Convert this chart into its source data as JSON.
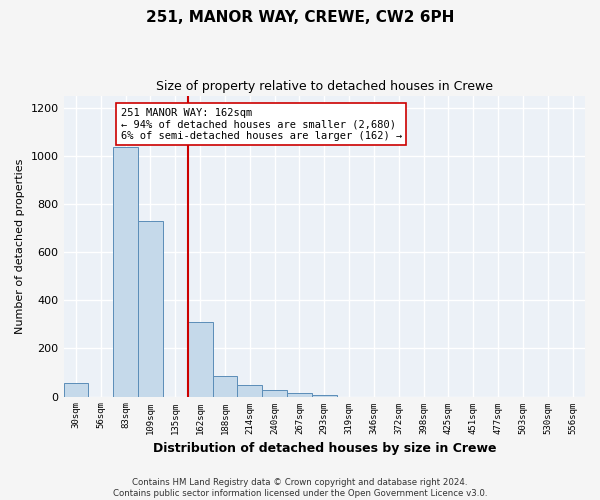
{
  "title": "251, MANOR WAY, CREWE, CW2 6PH",
  "subtitle": "Size of property relative to detached houses in Crewe",
  "xlabel": "Distribution of detached houses by size in Crewe",
  "ylabel": "Number of detached properties",
  "bar_labels": [
    "30sqm",
    "56sqm",
    "83sqm",
    "109sqm",
    "135sqm",
    "162sqm",
    "188sqm",
    "214sqm",
    "240sqm",
    "267sqm",
    "293sqm",
    "319sqm",
    "346sqm",
    "372sqm",
    "398sqm",
    "425sqm",
    "451sqm",
    "477sqm",
    "503sqm",
    "530sqm",
    "556sqm"
  ],
  "bar_values": [
    57,
    0,
    1035,
    730,
    0,
    310,
    85,
    50,
    28,
    14,
    8,
    0,
    0,
    0,
    0,
    0,
    0,
    0,
    0,
    0,
    0
  ],
  "bar_color": "#c5d9ea",
  "bar_edge_color": "#5b8db8",
  "vline_color": "#cc0000",
  "vline_x_idx": 4.5,
  "annotation_text": "251 MANOR WAY: 162sqm\n← 94% of detached houses are smaller (2,680)\n6% of semi-detached houses are larger (162) →",
  "ylim": [
    0,
    1250
  ],
  "yticks": [
    0,
    200,
    400,
    600,
    800,
    1000,
    1200
  ],
  "plot_bg": "#ecf1f7",
  "fig_bg": "#f5f5f5",
  "footer": "Contains HM Land Registry data © Crown copyright and database right 2024.\nContains public sector information licensed under the Open Government Licence v3.0."
}
